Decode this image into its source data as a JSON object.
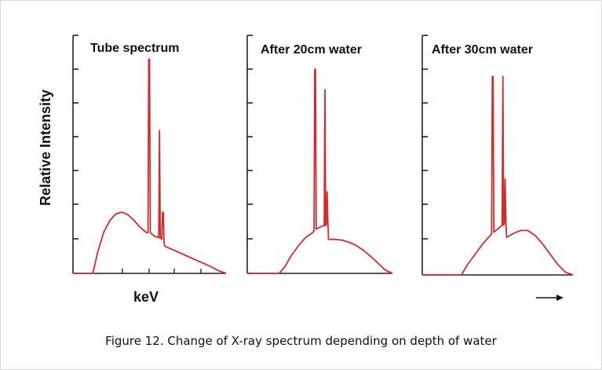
{
  "caption": "Figure 12. Change of X-ray spectrum depending on depth of water",
  "y_axis_label": "Relative Intensity",
  "x_axis_label": "keV",
  "colors": {
    "curve": "#d42a2a",
    "axis": "#222222"
  },
  "chart_data": [
    {
      "type": "line",
      "title": "Tube spectrum",
      "xlabel": "keV",
      "ylabel": "Relative Intensity",
      "xlim": [
        0,
        10
      ],
      "ylim": [
        0,
        7
      ],
      "grid": false,
      "series": [
        {
          "x": [
            0,
            1.3,
            1.6,
            2.0,
            2.4,
            2.8,
            3.2,
            3.6,
            4.0,
            4.4,
            4.8,
            4.9,
            4.95,
            5.0,
            5.05,
            5.3,
            5.6,
            5.65,
            5.7,
            5.8,
            5.85,
            5.9,
            5.95,
            6.0,
            6.6,
            7.4,
            8.2,
            9.0,
            9.5,
            10.0
          ],
          "y": [
            0,
            0,
            0.6,
            1.2,
            1.55,
            1.75,
            1.8,
            1.72,
            1.55,
            1.35,
            1.2,
            1.2,
            6.3,
            6.3,
            1.2,
            1.1,
            1.05,
            4.2,
            1.05,
            1.0,
            1.8,
            1.8,
            0.9,
            0.8,
            0.68,
            0.52,
            0.36,
            0.2,
            0.08,
            0
          ]
        }
      ]
    },
    {
      "type": "line",
      "title": "After 20cm water",
      "xlabel": "keV",
      "ylabel": "Relative Intensity",
      "xlim": [
        0,
        10
      ],
      "ylim": [
        0,
        7
      ],
      "grid": false,
      "series": [
        {
          "x": [
            0,
            2.2,
            2.6,
            3.0,
            3.5,
            4.0,
            4.5,
            4.6,
            4.65,
            4.7,
            4.75,
            5.2,
            5.3,
            5.35,
            5.4,
            5.45,
            5.5,
            5.55,
            5.6,
            6.0,
            6.5,
            7.0,
            7.5,
            8.0,
            8.5,
            9.0,
            9.5,
            10.0
          ],
          "y": [
            0,
            0,
            0.2,
            0.5,
            0.8,
            1.05,
            1.2,
            1.25,
            6.0,
            6.0,
            1.3,
            1.4,
            1.4,
            5.4,
            1.4,
            1.45,
            2.4,
            1.5,
            1.0,
            1.0,
            0.98,
            0.92,
            0.82,
            0.68,
            0.5,
            0.3,
            0.1,
            0
          ]
        }
      ]
    },
    {
      "type": "line",
      "title": "After 30cm water",
      "xlabel": "keV",
      "ylabel": "Relative Intensity",
      "xlim": [
        0,
        10
      ],
      "ylim": [
        0,
        7
      ],
      "grid": false,
      "series": [
        {
          "x": [
            0,
            2.6,
            3.0,
            3.5,
            4.0,
            4.5,
            4.6,
            4.65,
            4.7,
            4.75,
            5.3,
            5.35,
            5.4,
            5.45,
            5.5,
            5.55,
            5.6,
            6.0,
            6.5,
            7.0,
            7.5,
            8.0,
            8.5,
            9.0,
            9.5,
            10.0
          ],
          "y": [
            0,
            0,
            0.3,
            0.6,
            0.9,
            1.15,
            1.2,
            5.8,
            5.8,
            1.25,
            1.45,
            5.8,
            1.45,
            1.5,
            2.8,
            1.5,
            1.1,
            1.2,
            1.3,
            1.3,
            1.15,
            0.9,
            0.6,
            0.3,
            0.08,
            0
          ]
        }
      ]
    }
  ]
}
